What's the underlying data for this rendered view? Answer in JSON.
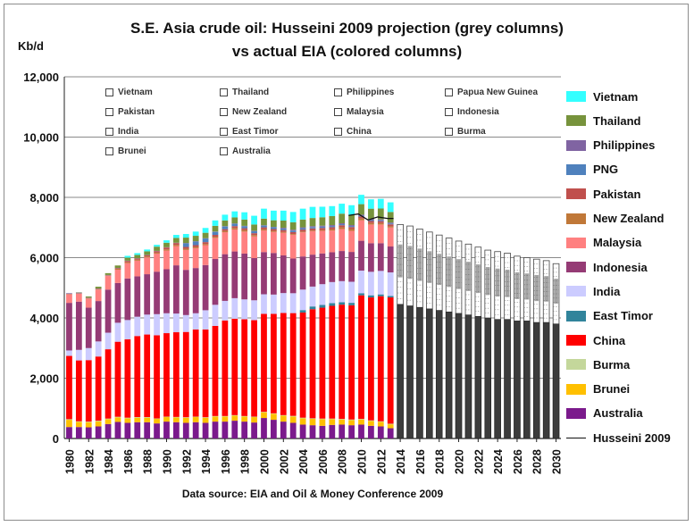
{
  "title_line1": "S.E. Asia crude oil: Husseini  2009 projection  (grey columns)",
  "title_line2": "vs actual  EIA (colored columns)",
  "unit_label": "Kb/d",
  "source": "Data source: EIA and Oil & Money Conference 2009",
  "inner_legend": [
    "Vietnam",
    "Thailand",
    "Philippines",
    "Papua New Guinea",
    "Pakistan",
    "New Zealand",
    "Malaysia",
    "Indonesia",
    "India",
    "East Timor",
    "China",
    "Burma",
    "Brunei",
    "Australia"
  ],
  "chart_data": {
    "type": "bar",
    "stacked": true,
    "title": "S.E. Asia crude oil: Husseini  2009 projection  (grey columns) vs actual  EIA (colored columns)",
    "ylabel": "Kb/d",
    "ylim": [
      0,
      12000
    ],
    "yticks": [
      0,
      2000,
      4000,
      6000,
      8000,
      10000,
      12000
    ],
    "ytick_labels": [
      "0",
      "2,000",
      "4,000",
      "6,000",
      "8,000",
      "10,000",
      "12,000"
    ],
    "xtick_labels": [
      "1980",
      "1982",
      "1984",
      "1986",
      "1988",
      "1990",
      "1992",
      "1994",
      "1996",
      "1998",
      "2000",
      "2002",
      "2004",
      "2006",
      "2008",
      "2010",
      "2012",
      "2014",
      "2016",
      "2018",
      "2020",
      "2022",
      "2024",
      "2026",
      "2028",
      "2030"
    ],
    "grid": "horizontal",
    "legend_position": "right",
    "years": [
      1980,
      1981,
      1982,
      1983,
      1984,
      1985,
      1986,
      1987,
      1988,
      1989,
      1990,
      1991,
      1992,
      1993,
      1994,
      1995,
      1996,
      1997,
      1998,
      1999,
      2000,
      2001,
      2002,
      2003,
      2004,
      2005,
      2006,
      2007,
      2008,
      2009,
      2010,
      2011,
      2012,
      2013
    ],
    "series": [
      {
        "name": "Australia",
        "color": "#7b1a8c",
        "values": [
          380,
          380,
          370,
          400,
          480,
          550,
          520,
          540,
          540,
          500,
          560,
          540,
          520,
          540,
          520,
          560,
          560,
          590,
          560,
          530,
          680,
          620,
          560,
          520,
          460,
          440,
          420,
          450,
          460,
          440,
          460,
          420,
          400,
          340
        ]
      },
      {
        "name": "Brunei",
        "color": "#ffc000",
        "values": [
          240,
          170,
          170,
          170,
          160,
          150,
          150,
          150,
          150,
          150,
          150,
          160,
          170,
          170,
          170,
          170,
          170,
          170,
          170,
          180,
          190,
          200,
          200,
          210,
          210,
          210,
          220,
          190,
          170,
          170,
          170,
          160,
          150,
          130
        ]
      },
      {
        "name": "Burma",
        "color": "#c4d79b",
        "values": [
          20,
          20,
          20,
          20,
          20,
          20,
          20,
          20,
          20,
          15,
          15,
          15,
          15,
          15,
          15,
          15,
          15,
          15,
          15,
          15,
          15,
          15,
          15,
          20,
          20,
          20,
          20,
          20,
          20,
          20,
          20,
          20,
          20,
          20
        ]
      },
      {
        "name": "China",
        "color": "#ff0000",
        "values": [
          2100,
          2020,
          2040,
          2130,
          2300,
          2490,
          2600,
          2690,
          2740,
          2760,
          2770,
          2810,
          2830,
          2890,
          2910,
          2990,
          3170,
          3200,
          3210,
          3200,
          3250,
          3300,
          3390,
          3410,
          3490,
          3620,
          3680,
          3740,
          3790,
          3790,
          4100,
          4080,
          4150,
          4190
        ]
      },
      {
        "name": "East Timor",
        "color": "#31849b",
        "values": [
          0,
          0,
          0,
          0,
          0,
          0,
          0,
          0,
          0,
          0,
          0,
          0,
          0,
          0,
          0,
          0,
          0,
          0,
          0,
          0,
          0,
          0,
          0,
          0,
          80,
          90,
          90,
          90,
          80,
          80,
          70,
          70,
          60,
          50
        ]
      },
      {
        "name": "India",
        "color": "#ccccff",
        "values": [
          180,
          350,
          400,
          500,
          550,
          630,
          640,
          640,
          660,
          700,
          660,
          620,
          560,
          540,
          640,
          700,
          650,
          680,
          660,
          660,
          650,
          640,
          660,
          660,
          680,
          660,
          690,
          700,
          700,
          700,
          750,
          780,
          780,
          780
        ]
      },
      {
        "name": "Indonesia",
        "color": "#953b75",
        "values": [
          1580,
          1600,
          1340,
          1340,
          1430,
          1320,
          1380,
          1340,
          1340,
          1410,
          1460,
          1600,
          1500,
          1500,
          1500,
          1520,
          1550,
          1550,
          1520,
          1400,
          1400,
          1380,
          1250,
          1150,
          1100,
          1060,
          1020,
          990,
          1000,
          990,
          990,
          950,
          920,
          860
        ]
      },
      {
        "name": "Malaysia",
        "color": "#ff8080",
        "values": [
          280,
          260,
          300,
          380,
          450,
          440,
          510,
          520,
          560,
          600,
          620,
          640,
          660,
          660,
          660,
          700,
          730,
          730,
          730,
          720,
          720,
          700,
          750,
          790,
          800,
          780,
          750,
          720,
          730,
          700,
          680,
          620,
          620,
          630
        ]
      },
      {
        "name": "New Zealand",
        "color": "#c07838",
        "values": [
          10,
          10,
          10,
          10,
          10,
          30,
          30,
          30,
          30,
          30,
          40,
          40,
          40,
          40,
          40,
          40,
          40,
          50,
          50,
          45,
          40,
          35,
          30,
          25,
          25,
          25,
          30,
          45,
          60,
          60,
          60,
          50,
          45,
          40
        ]
      },
      {
        "name": "Pakistan",
        "color": "#c0504d",
        "values": [
          10,
          10,
          12,
          15,
          15,
          20,
          40,
          40,
          40,
          50,
          60,
          60,
          60,
          60,
          60,
          60,
          60,
          60,
          60,
          60,
          60,
          60,
          60,
          60,
          65,
          65,
          65,
          65,
          65,
          65,
          65,
          65,
          65,
          65
        ]
      },
      {
        "name": "PNG",
        "color": "#4f81bd",
        "values": [
          0,
          0,
          0,
          0,
          0,
          0,
          0,
          0,
          0,
          0,
          0,
          0,
          120,
          120,
          120,
          100,
          90,
          80,
          70,
          70,
          60,
          60,
          50,
          50,
          45,
          45,
          45,
          40,
          35,
          35,
          30,
          30,
          30,
          30
        ]
      },
      {
        "name": "Philippines",
        "color": "#8064a2",
        "values": [
          20,
          20,
          10,
          10,
          10,
          10,
          10,
          10,
          10,
          10,
          10,
          10,
          10,
          10,
          10,
          10,
          10,
          10,
          10,
          10,
          10,
          10,
          25,
          30,
          30,
          30,
          30,
          30,
          30,
          30,
          30,
          30,
          30,
          30
        ]
      },
      {
        "name": "Thailand",
        "color": "#77933c",
        "values": [
          0,
          10,
          40,
          60,
          60,
          80,
          100,
          110,
          120,
          140,
          150,
          160,
          180,
          180,
          180,
          190,
          190,
          200,
          210,
          210,
          220,
          220,
          240,
          250,
          260,
          270,
          280,
          300,
          320,
          340,
          350,
          350,
          360,
          350
        ]
      },
      {
        "name": "Vietnam",
        "color": "#33ffff",
        "values": [
          0,
          0,
          0,
          0,
          0,
          0,
          60,
          60,
          60,
          60,
          80,
          100,
          120,
          140,
          160,
          180,
          190,
          200,
          240,
          290,
          330,
          320,
          330,
          340,
          360,
          370,
          350,
          330,
          330,
          320,
          310,
          310,
          320,
          320
        ]
      }
    ],
    "projection": {
      "name": "Husseini 2009",
      "years": [
        2014,
        2015,
        2016,
        2017,
        2018,
        2019,
        2020,
        2021,
        2022,
        2023,
        2024,
        2025,
        2026,
        2027,
        2028,
        2029,
        2030
      ],
      "totals": [
        7100,
        7050,
        6950,
        6850,
        6750,
        6650,
        6550,
        6450,
        6350,
        6250,
        6200,
        6150,
        6050,
        6000,
        5950,
        5900,
        5800
      ],
      "lower_band": [
        4450,
        4400,
        4350,
        4300,
        4250,
        4200,
        4150,
        4100,
        4050,
        4000,
        3950,
        3950,
        3900,
        3900,
        3850,
        3850,
        3800
      ],
      "line_years": [
        2009,
        2010,
        2011,
        2012,
        2013
      ],
      "line_values": [
        7400,
        7450,
        7250,
        7350,
        7300
      ]
    }
  },
  "right_legend": [
    {
      "label": "Vietnam",
      "color": "#33ffff"
    },
    {
      "label": "Thailand",
      "color": "#77933c"
    },
    {
      "label": "Philippines",
      "color": "#8064a2"
    },
    {
      "label": "PNG",
      "color": "#4f81bd"
    },
    {
      "label": "Pakistan",
      "color": "#c0504d"
    },
    {
      "label": "New Zealand",
      "color": "#c07838"
    },
    {
      "label": "Malaysia",
      "color": "#ff8080"
    },
    {
      "label": "Indonesia",
      "color": "#953b75"
    },
    {
      "label": "India",
      "color": "#ccccff"
    },
    {
      "label": "East Timor",
      "color": "#31849b"
    },
    {
      "label": "China",
      "color": "#ff0000"
    },
    {
      "label": "Burma",
      "color": "#c4d79b"
    },
    {
      "label": "Brunei",
      "color": "#ffc000"
    },
    {
      "label": "Australia",
      "color": "#7b1a8c"
    },
    {
      "label": "Husseini 2009",
      "line": true
    }
  ]
}
